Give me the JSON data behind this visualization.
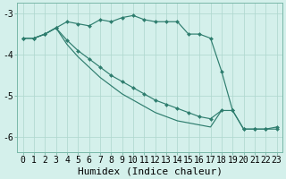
{
  "bg_color": "#d4f0eb",
  "grid_color": "#b0d8cf",
  "line_color": "#2e7d6e",
  "marker_color": "#2e7d6e",
  "xlabel": "Humidex (Indice chaleur)",
  "xlabel_fontsize": 8,
  "tick_fontsize": 7,
  "ytick_labels": [
    "-3",
    "-4",
    "-5",
    "-6"
  ],
  "ytick_values": [
    -3,
    -4,
    -5,
    -6
  ],
  "ylim": [
    -6.35,
    -2.75
  ],
  "xlim": [
    -0.5,
    23.5
  ],
  "xtick_values": [
    0,
    1,
    2,
    3,
    4,
    5,
    6,
    7,
    8,
    9,
    10,
    11,
    12,
    13,
    14,
    15,
    16,
    17,
    18,
    19,
    20,
    21,
    22,
    23
  ],
  "series1_x": [
    0,
    1,
    2,
    3,
    4,
    5,
    6,
    7,
    8,
    9,
    10,
    11,
    12,
    13,
    14,
    15,
    16,
    17,
    18,
    19,
    20,
    21,
    22,
    23
  ],
  "series1_y": [
    -3.6,
    -3.6,
    -3.5,
    -3.35,
    -3.2,
    -3.25,
    -3.3,
    -3.15,
    -3.2,
    -3.1,
    -3.05,
    -3.15,
    -3.2,
    -3.2,
    -3.2,
    -3.5,
    -3.5,
    -3.6,
    -4.4,
    -5.35,
    -5.8,
    -5.8,
    -5.8,
    -5.8
  ],
  "series2_x": [
    0,
    1,
    2,
    3,
    4,
    5,
    6,
    7,
    8,
    9,
    10,
    11,
    12,
    13,
    14,
    15,
    16,
    17,
    18,
    19,
    20,
    21,
    22,
    23
  ],
  "series2_y": [
    -3.6,
    -3.6,
    -3.5,
    -3.35,
    -3.65,
    -3.9,
    -4.1,
    -4.3,
    -4.5,
    -4.65,
    -4.8,
    -4.95,
    -5.1,
    -5.2,
    -5.3,
    -5.4,
    -5.5,
    -5.55,
    -5.35,
    -5.35,
    -5.8,
    -5.8,
    -5.8,
    -5.75
  ],
  "series3_x": [
    0,
    1,
    2,
    3,
    4,
    5,
    6,
    7,
    8,
    9,
    10,
    11,
    12,
    13,
    14,
    15,
    16,
    17,
    18
  ],
  "series3_y": [
    -3.6,
    -3.6,
    -3.5,
    -3.35,
    -3.75,
    -4.05,
    -4.3,
    -4.55,
    -4.75,
    -4.95,
    -5.1,
    -5.25,
    -5.4,
    -5.5,
    -5.6,
    -5.65,
    -5.7,
    -5.75,
    -5.35
  ]
}
